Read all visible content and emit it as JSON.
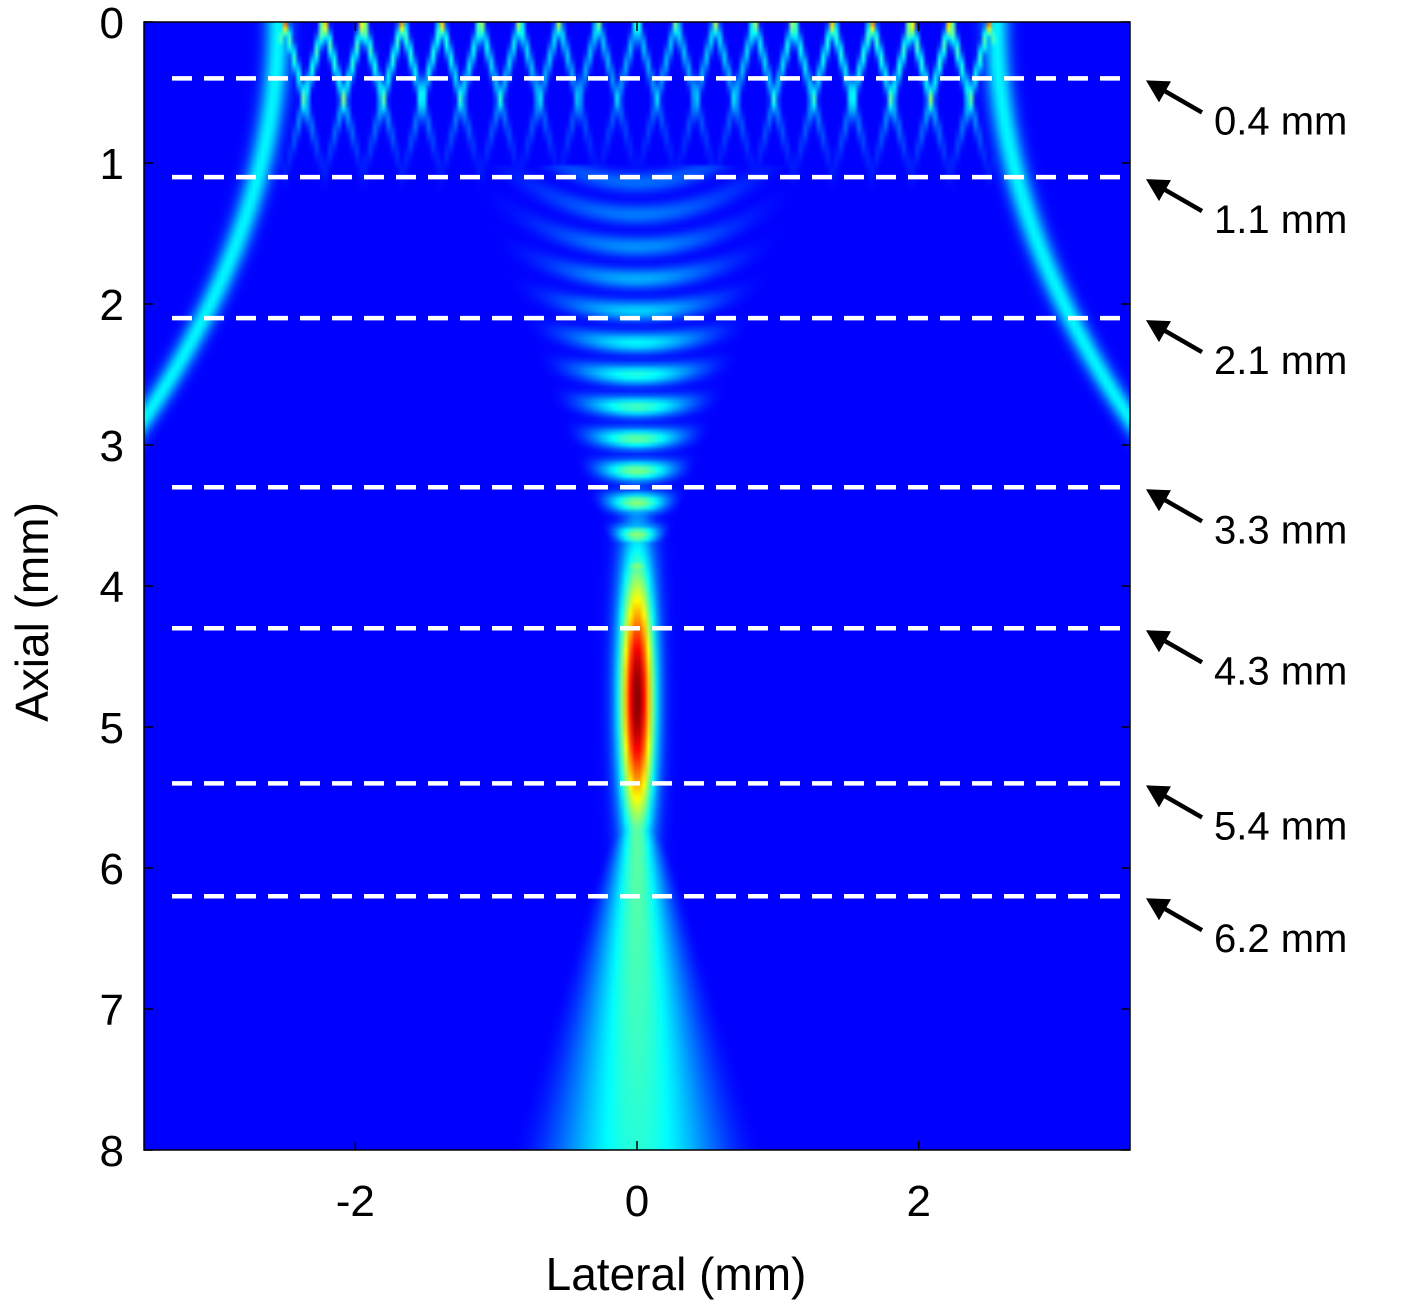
{
  "chart_data": {
    "type": "heatmap",
    "title": "",
    "xlabel": "Lateral (mm)",
    "ylabel": "Axial (mm)",
    "xlim": [
      -3.5,
      3.5
    ],
    "ylim": [
      0,
      8
    ],
    "y_reversed": true,
    "x_ticks": [
      -2,
      0,
      2
    ],
    "y_ticks": [
      0,
      1,
      2,
      3,
      4,
      5,
      6,
      7,
      8
    ],
    "colormap": "jet",
    "background_color": "#00008f",
    "annotation_color": "#ffffff",
    "description_field": "acoustic pressure field: focal spot centered at lateral 0 mm, peak near axial 4.8 mm, spanning roughly 4.0 to 6.3 mm axially; interference fringes near the aperture (axial 0 to 1.2 mm) and diverging side lobes at the edges",
    "focal_peak": {
      "x": 0,
      "y": 4.8
    },
    "reference_lines": [
      {
        "y": 0.4,
        "label": "0.4 mm"
      },
      {
        "y": 1.1,
        "label": "1.1 mm"
      },
      {
        "y": 2.1,
        "label": "2.1 mm"
      },
      {
        "y": 3.3,
        "label": "3.3 mm"
      },
      {
        "y": 4.3,
        "label": "4.3 mm"
      },
      {
        "y": 5.4,
        "label": "5.4 mm"
      },
      {
        "y": 6.2,
        "label": "6.2 mm"
      }
    ]
  }
}
